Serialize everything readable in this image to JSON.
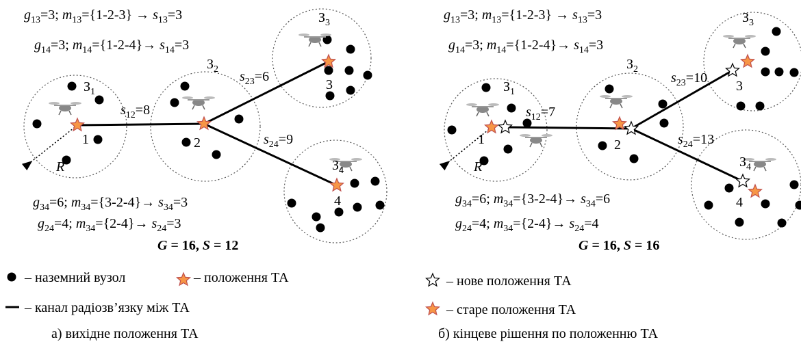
{
  "panels": [
    {
      "formulas": [
        [
          {
            "i": "g"
          },
          {
            "sub": "13"
          },
          {
            "t": "=3; "
          },
          {
            "i": "m"
          },
          {
            "sub": "13"
          },
          {
            "t": "={1-2-3} → "
          },
          {
            "i": "s"
          },
          {
            "sub": "13"
          },
          {
            "t": "=3"
          }
        ],
        [
          {
            "i": "g"
          },
          {
            "sub": "14"
          },
          {
            "t": "=3; "
          },
          {
            "i": "m"
          },
          {
            "sub": "14"
          },
          {
            "t": "={1-2-4}→ "
          },
          {
            "i": "s"
          },
          {
            "sub": "14"
          },
          {
            "t": "=3"
          }
        ],
        [
          {
            "i": "g"
          },
          {
            "sub": "34"
          },
          {
            "t": "=6; "
          },
          {
            "i": "m"
          },
          {
            "sub": "34"
          },
          {
            "t": "={3-2-4}→ "
          },
          {
            "i": "s"
          },
          {
            "sub": "34"
          },
          {
            "t": "=3"
          }
        ],
        [
          {
            "i": "g"
          },
          {
            "sub": "24"
          },
          {
            "t": "=4; "
          },
          {
            "i": "m"
          },
          {
            "sub": "34"
          },
          {
            "t": "={2-4}→ "
          },
          {
            "i": "s"
          },
          {
            "sub": "24"
          },
          {
            "t": "=3"
          }
        ]
      ],
      "total": [
        {
          "i": "G"
        },
        {
          "t": " = 16, "
        },
        {
          "i": "S"
        },
        {
          "t": " = 12"
        }
      ],
      "clusters": [
        [
          {
            "t": "З"
          },
          {
            "sub": "1"
          }
        ],
        [
          {
            "t": "З"
          },
          {
            "sub": "2"
          }
        ],
        [
          {
            "t": "З"
          },
          {
            "sub": "3"
          }
        ],
        [
          {
            "t": "З"
          },
          {
            "sub": "4"
          }
        ]
      ],
      "nodes": [
        "1",
        "2",
        "3",
        "4"
      ],
      "edges": [
        [
          {
            "i": "s"
          },
          {
            "sub": "12"
          },
          {
            "t": "=8"
          }
        ],
        [
          {
            "i": "s"
          },
          {
            "sub": "23"
          },
          {
            "t": "=6"
          }
        ],
        [
          {
            "i": "s"
          },
          {
            "sub": "24"
          },
          {
            "t": "=9"
          }
        ]
      ],
      "radius": "R",
      "caption": "а) вихідне положення ТА"
    },
    {
      "formulas": [
        [
          {
            "i": "g"
          },
          {
            "sub": "13"
          },
          {
            "t": "=3; "
          },
          {
            "i": "m"
          },
          {
            "sub": "13"
          },
          {
            "t": "={1-2-3} → "
          },
          {
            "i": "s"
          },
          {
            "sub": "13"
          },
          {
            "t": "=3"
          }
        ],
        [
          {
            "i": "g"
          },
          {
            "sub": "14"
          },
          {
            "t": "=3; "
          },
          {
            "i": "m"
          },
          {
            "sub": "14"
          },
          {
            "t": "={1-2-4}→ "
          },
          {
            "i": "s"
          },
          {
            "sub": "14"
          },
          {
            "t": "=3"
          }
        ],
        [
          {
            "i": "g"
          },
          {
            "sub": "34"
          },
          {
            "t": "=6; "
          },
          {
            "i": "m"
          },
          {
            "sub": "34"
          },
          {
            "t": "={3-2-4}→ "
          },
          {
            "i": "s"
          },
          {
            "sub": "34"
          },
          {
            "t": "=6"
          }
        ],
        [
          {
            "i": "g"
          },
          {
            "sub": "24"
          },
          {
            "t": "=4; "
          },
          {
            "i": "m"
          },
          {
            "sub": "34"
          },
          {
            "t": "={2-4}→ "
          },
          {
            "i": "s"
          },
          {
            "sub": "24"
          },
          {
            "t": "=4"
          }
        ]
      ],
      "total": [
        {
          "i": "G"
        },
        {
          "t": " = 16, "
        },
        {
          "i": "S"
        },
        {
          "t": " = 16"
        }
      ],
      "clusters": [
        [
          {
            "t": "З"
          },
          {
            "sub": "1"
          }
        ],
        [
          {
            "t": "З"
          },
          {
            "sub": "2"
          }
        ],
        [
          {
            "t": "З"
          },
          {
            "sub": "3"
          }
        ],
        [
          {
            "t": "З"
          },
          {
            "sub": "4"
          }
        ]
      ],
      "nodes": [
        "1",
        "2",
        "3",
        "4"
      ],
      "edges": [
        [
          {
            "i": "s"
          },
          {
            "sub": "12"
          },
          {
            "t": "=7"
          }
        ],
        [
          {
            "i": "s"
          },
          {
            "sub": "23"
          },
          {
            "t": "=10"
          }
        ],
        [
          {
            "i": "s"
          },
          {
            "sub": "24"
          },
          {
            "t": "=13"
          }
        ]
      ],
      "radius": "R",
      "caption": "б) кінцеве рішення по положенню ТА"
    }
  ],
  "legend": {
    "ground": "– наземний вузол",
    "position": "– положення ТА",
    "link": "– канал радіозв’язку між ТА",
    "new": "– нове положення ТА",
    "old": "– старе положення ТА"
  }
}
